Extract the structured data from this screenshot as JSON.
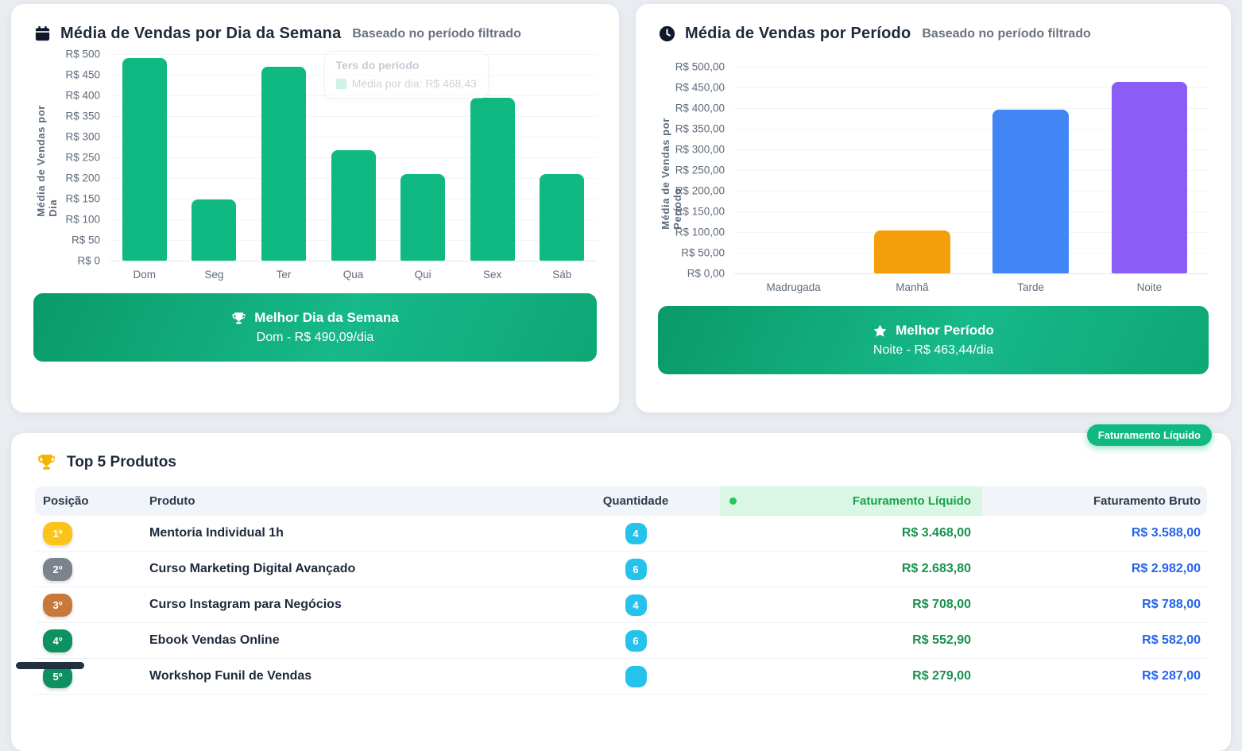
{
  "cards": {
    "weekday": {
      "title": "Média de Vendas por Dia da Semana",
      "subtitle": "Baseado no período filtrado",
      "tooltip": {
        "title": "Ters do período",
        "entry": "Média por dia: R$ 468,43"
      },
      "banner": {
        "title": "Melhor Dia da Semana",
        "value": "Dom - R$ 490,09/dia"
      }
    },
    "period": {
      "title": "Média de Vendas por Período",
      "subtitle": "Baseado no período filtrado",
      "banner": {
        "title": "Melhor Período",
        "value": "Noite - R$ 463,44/dia"
      }
    },
    "top_products": {
      "title": "Top 5 Produtos",
      "filter_badge": "Faturamento Líquido",
      "columns": {
        "position": "Posição",
        "product": "Produto",
        "quantity": "Quantidade",
        "net": "Faturamento Líquido",
        "gross": "Faturamento Bruto"
      },
      "rows": [
        {
          "position": "1º",
          "badge_color": "#fcc419",
          "product": "Mentoria Individual 1h",
          "quantity": "4",
          "net": "R$ 3.468,00",
          "gross": "R$ 3.588,00"
        },
        {
          "position": "2º",
          "badge_color": "#7b838d",
          "product": "Curso Marketing Digital Avançado",
          "quantity": "6",
          "net": "R$ 2.683,80",
          "gross": "R$ 2.982,00"
        },
        {
          "position": "3º",
          "badge_color": "#c8793a",
          "product": "Curso Instagram para Negócios",
          "quantity": "4",
          "net": "R$ 708,00",
          "gross": "R$ 788,00"
        },
        {
          "position": "4º",
          "badge_color": "#0e9160",
          "product": "Ebook Vendas Online",
          "quantity": "6",
          "net": "R$ 552,90",
          "gross": "R$ 582,00"
        },
        {
          "position": "5º",
          "badge_color": "#0e9160",
          "product": "Workshop Funil de Vendas",
          "quantity": "",
          "net": "R$ 279,00",
          "gross": "R$ 287,00"
        }
      ]
    }
  },
  "chart_data": [
    {
      "type": "bar",
      "title": "Média de Vendas por Dia da Semana",
      "categories": [
        "Dom",
        "Seg",
        "Ter",
        "Qua",
        "Qui",
        "Sex",
        "Sáb"
      ],
      "values": [
        490.09,
        148,
        468.43,
        267,
        210,
        394,
        209
      ],
      "ylabel": "Média de Vendas por Dia",
      "xlabel": "",
      "ylim": [
        0,
        500
      ],
      "yticks": [
        "R$ 500",
        "R$ 450",
        "R$ 400",
        "R$ 350",
        "R$ 300",
        "R$ 250",
        "R$ 200",
        "R$ 150",
        "R$ 100",
        "R$ 50",
        "R$ 0"
      ],
      "bar_color": "#10b981",
      "grid": true,
      "legend_position": "none"
    },
    {
      "type": "bar",
      "title": "Média de Vendas por Período",
      "categories": [
        "Madrugada",
        "Manhã",
        "Tarde",
        "Noite"
      ],
      "values": [
        0,
        103,
        397,
        463.44
      ],
      "colors": [
        "#f59e0b",
        "#f59e0b",
        "#4285f4",
        "#8b5cf6"
      ],
      "ylabel": "Média de Vendas por Período",
      "xlabel": "",
      "ylim": [
        0,
        500
      ],
      "yticks": [
        "R$ 500,00",
        "R$ 450,00",
        "R$ 400,00",
        "R$ 350,00",
        "R$ 300,00",
        "R$ 250,00",
        "R$ 200,00",
        "R$ 150,00",
        "R$ 100,00",
        "R$ 50,00",
        "R$ 0,00"
      ],
      "grid": true,
      "legend_position": "none"
    }
  ],
  "colors": {
    "accent_green": "#10b981",
    "net_text": "#17914f",
    "gross_text": "#2563eb",
    "quantity_badge": "#25c3ec"
  }
}
